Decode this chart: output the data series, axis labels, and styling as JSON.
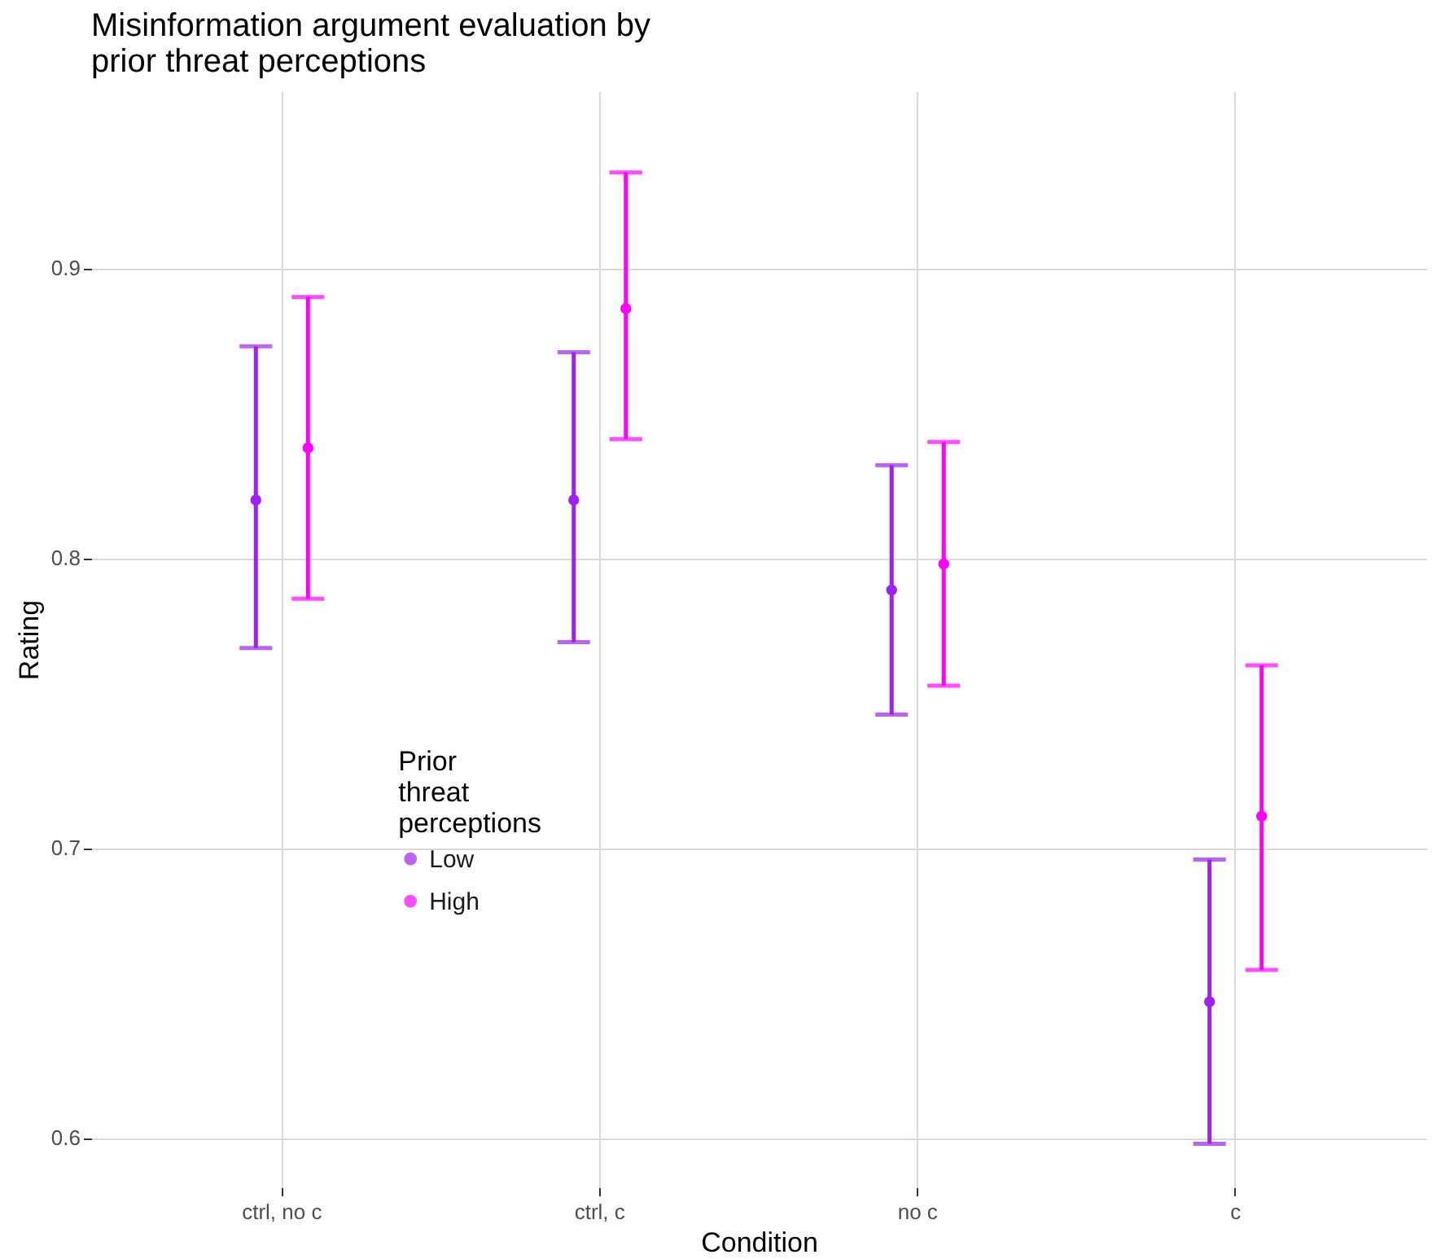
{
  "chart_data": {
    "type": "scatter",
    "title": "Misinformation argument evaluation by prior threat perceptions",
    "xlabel": "Condition",
    "ylabel": "Rating",
    "legend_title": "Prior threat perceptions",
    "categories": [
      "ctrl, no c",
      "ctrl, c",
      "no c",
      "c"
    ],
    "series": [
      {
        "name": "Low",
        "color": "#a020f0",
        "values": [
          0.82,
          0.82,
          0.789,
          0.647
        ],
        "errors": [
          [
            0.769,
            0.873
          ],
          [
            0.771,
            0.871
          ],
          [
            0.746,
            0.832
          ],
          [
            0.598,
            0.696
          ]
        ]
      },
      {
        "name": "High",
        "color": "#ff00ff",
        "values": [
          0.838,
          0.886,
          0.798,
          0.711
        ],
        "errors": [
          [
            0.786,
            0.89
          ],
          [
            0.841,
            0.933
          ],
          [
            0.756,
            0.84
          ],
          [
            0.658,
            0.763
          ]
        ]
      }
    ],
    "ylim": [
      0.583,
      0.961
    ],
    "yticks": [
      0.6,
      0.7,
      0.8,
      0.9
    ],
    "grid": true,
    "legend": "bottom left",
    "marker": "circle"
  }
}
